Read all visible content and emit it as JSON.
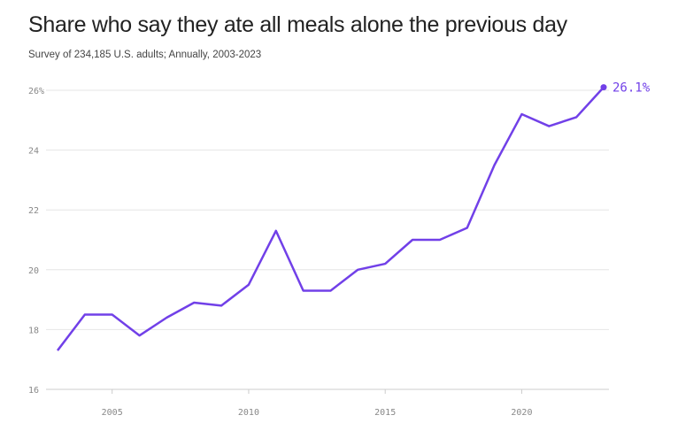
{
  "chart_data": {
    "type": "line",
    "title": "Share who say they ate all meals alone the previous day",
    "subtitle": "Survey of 234,185 U.S. adults; Annually, 2003-2023",
    "xlabel": "",
    "ylabel": "",
    "x": [
      2003,
      2004,
      2005,
      2006,
      2007,
      2008,
      2009,
      2010,
      2011,
      2012,
      2013,
      2014,
      2015,
      2016,
      2017,
      2018,
      2019,
      2020,
      2021,
      2022,
      2023
    ],
    "series": [
      {
        "name": "Ate all meals alone",
        "values": [
          17.3,
          18.5,
          18.5,
          17.8,
          18.4,
          18.9,
          18.8,
          19.5,
          21.3,
          19.3,
          19.3,
          20.0,
          20.2,
          21.0,
          21.0,
          21.4,
          23.5,
          25.2,
          24.8,
          25.1,
          26.1
        ]
      }
    ],
    "xlim": [
      2003,
      2023
    ],
    "ylim": [
      16,
      26
    ],
    "yticks": [
      16,
      18,
      20,
      22,
      24,
      26
    ],
    "ytick_labels": [
      "16",
      "18",
      "20",
      "22",
      "24",
      "26%"
    ],
    "xticks": [
      2005,
      2010,
      2015,
      2020
    ],
    "xtick_labels": [
      "2005",
      "2010",
      "2015",
      "2020"
    ],
    "end_label": "26.1%",
    "grid": true,
    "colors": {
      "line": "#7140e8",
      "grid": "#e6e6e6",
      "axis": "#cccccc"
    }
  }
}
